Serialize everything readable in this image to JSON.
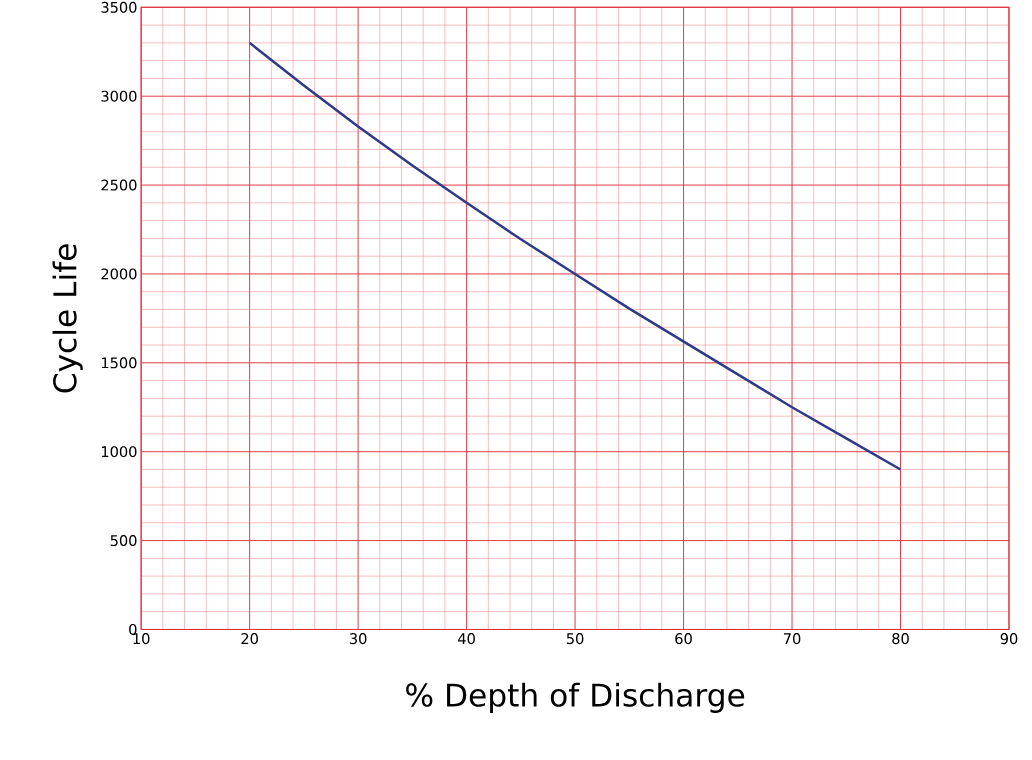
{
  "chart_data": {
    "type": "line",
    "xlabel": "% Depth of Discharge",
    "ylabel": "Cycle Life",
    "x": [
      20,
      25,
      30,
      35,
      40,
      45,
      50,
      55,
      60,
      65,
      70,
      75,
      80
    ],
    "series": [
      {
        "color": "#2e3a87",
        "values": [
          3300,
          3060,
          2830,
          2610,
          2400,
          2195,
          2000,
          1805,
          1620,
          1435,
          1250,
          1075,
          900
        ]
      }
    ],
    "xlim": [
      10,
      90
    ],
    "ylim": [
      0,
      3500
    ],
    "xticks": [
      10,
      {
        "value": 12,
        "label": null
      },
      {
        "value": 14,
        "label": null
      },
      {
        "value": 16,
        "label": null
      },
      {
        "value": 18,
        "label": null
      },
      20,
      {
        "value": 22,
        "label": null
      },
      {
        "value": 24,
        "label": null
      },
      {
        "value": 26,
        "label": null
      },
      {
        "value": 28,
        "label": null
      },
      30,
      {
        "value": 32,
        "label": null
      },
      {
        "value": 34,
        "label": null
      },
      {
        "value": 36,
        "label": null
      },
      {
        "value": 38,
        "label": null
      },
      40,
      {
        "value": 42,
        "label": null
      },
      {
        "value": 44,
        "label": null
      },
      {
        "value": 46,
        "label": null
      },
      {
        "value": 48,
        "label": null
      },
      50,
      {
        "value": 52,
        "label": null
      },
      {
        "value": 54,
        "label": null
      },
      {
        "value": 56,
        "label": null
      },
      {
        "value": 58,
        "label": null
      },
      60,
      {
        "value": 62,
        "label": null
      },
      {
        "value": 64,
        "label": null
      },
      {
        "value": 66,
        "label": null
      },
      {
        "value": 68,
        "label": null
      },
      70,
      {
        "value": 72,
        "label": null
      },
      {
        "value": 74,
        "label": null
      },
      {
        "value": 76,
        "label": null
      },
      {
        "value": 78,
        "label": null
      },
      80,
      {
        "value": 82,
        "label": null
      },
      {
        "value": 84,
        "label": null
      },
      {
        "value": 86,
        "label": null
      },
      {
        "value": 88,
        "label": null
      },
      90
    ],
    "yticks": [
      0,
      {
        "value": 100,
        "label": null
      },
      {
        "value": 200,
        "label": null
      },
      {
        "value": 300,
        "label": null
      },
      {
        "value": 400,
        "label": null
      },
      500,
      {
        "value": 600,
        "label": null
      },
      {
        "value": 700,
        "label": null
      },
      {
        "value": 800,
        "label": null
      },
      {
        "value": 900,
        "label": null
      },
      1000,
      {
        "value": 1100,
        "label": null
      },
      {
        "value": 1200,
        "label": null
      },
      {
        "value": 1300,
        "label": null
      },
      {
        "value": 1400,
        "label": null
      },
      1500,
      {
        "value": 1600,
        "label": null
      },
      {
        "value": 1700,
        "label": null
      },
      {
        "value": 1800,
        "label": null
      },
      {
        "value": 1900,
        "label": null
      },
      2000,
      {
        "value": 2100,
        "label": null
      },
      {
        "value": 2200,
        "label": null
      },
      {
        "value": 2300,
        "label": null
      },
      {
        "value": 2400,
        "label": null
      },
      2500,
      {
        "value": 2600,
        "label": null
      },
      {
        "value": 2700,
        "label": null
      },
      {
        "value": 2800,
        "label": null
      },
      {
        "value": 2900,
        "label": null
      },
      3000,
      {
        "value": 3100,
        "label": null
      },
      {
        "value": 3200,
        "label": null
      },
      {
        "value": 3300,
        "label": null
      },
      {
        "value": 3400,
        "label": null
      },
      3500
    ],
    "grid": true,
    "marker": "none",
    "line_style": "solid"
  }
}
